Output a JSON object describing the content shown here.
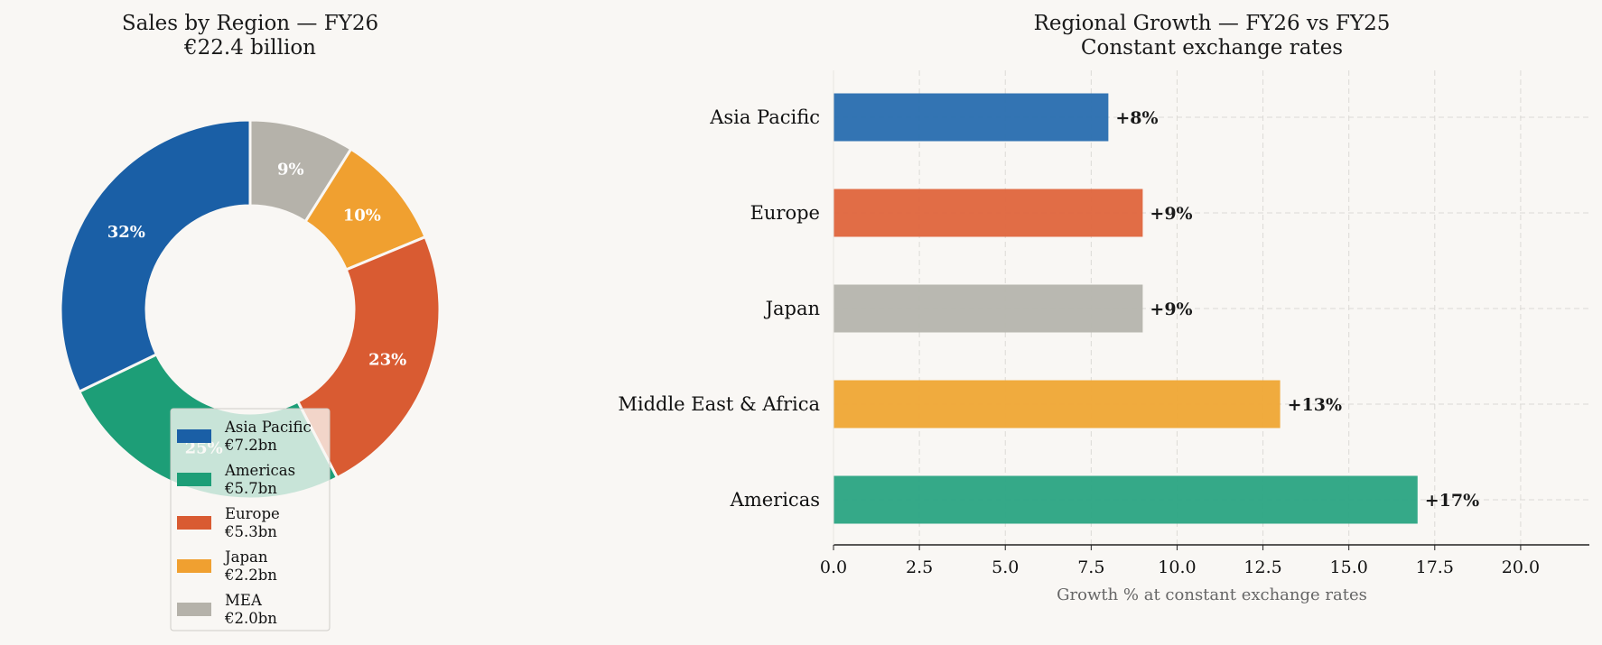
{
  "chart_data": [
    {
      "type": "pie",
      "title": "Sales by Region — FY26",
      "subtitle": "€22.4 billion",
      "donut": true,
      "start_angle_deg": 90,
      "direction": "clockwise",
      "slices": [
        {
          "name": "MEA",
          "value": 2.0,
          "value_label": "€2.0bn",
          "pct_label": "9%",
          "color": "#b5b2aa"
        },
        {
          "name": "Japan",
          "value": 2.2,
          "value_label": "€2.2bn",
          "pct_label": "10%",
          "color": "#f0a030"
        },
        {
          "name": "Europe",
          "value": 5.3,
          "value_label": "€5.3bn",
          "pct_label": "23%",
          "color": "#d95b32"
        },
        {
          "name": "Americas",
          "value": 5.7,
          "value_label": "€5.7bn",
          "pct_label": "25%",
          "color": "#1d9e77"
        },
        {
          "name": "Asia Pacific",
          "value": 7.2,
          "value_label": "€7.2bn",
          "pct_label": "32%",
          "color": "#1a5fa6"
        }
      ],
      "legend": {
        "placement": "lower-center",
        "order": [
          "Asia Pacific",
          "Americas",
          "Europe",
          "Japan",
          "MEA"
        ]
      }
    },
    {
      "type": "bar",
      "orientation": "horizontal",
      "title": "Regional Growth — FY26 vs FY25",
      "subtitle": "Constant exchange rates",
      "xlabel": "Growth % at constant exchange rates",
      "ylabel": "",
      "xlim": [
        0,
        22
      ],
      "xticks": [
        0,
        2.5,
        5,
        7.5,
        10,
        12.5,
        15,
        17.5,
        20
      ],
      "xtick_labels": [
        "0.0",
        "2.5",
        "5.0",
        "7.5",
        "10.0",
        "12.5",
        "15.0",
        "17.5",
        "20.0"
      ],
      "grid": true,
      "categories": [
        "Asia Pacific",
        "Europe",
        "Japan",
        "Middle East & Africa",
        "Americas"
      ],
      "values": [
        8,
        9,
        9,
        13,
        17
      ],
      "value_labels": [
        "+8%",
        "+9%",
        "+9%",
        "+13%",
        "+17%"
      ],
      "colors": [
        "#2c6fb1",
        "#e06840",
        "#b7b6ae",
        "#f0a838",
        "#2ea684"
      ]
    }
  ]
}
